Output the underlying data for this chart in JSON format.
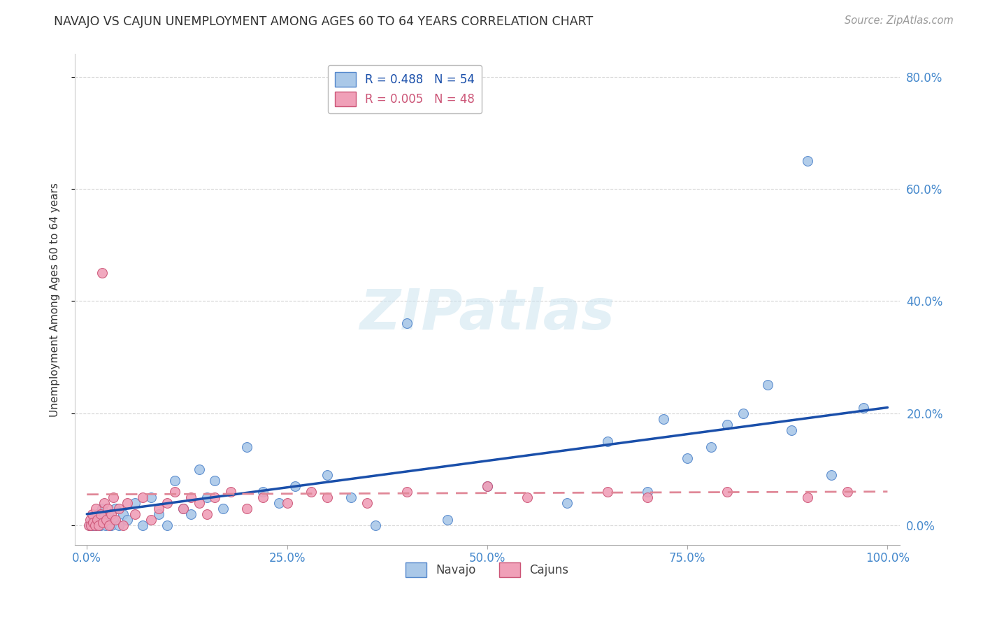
{
  "title": "NAVAJO VS CAJUN UNEMPLOYMENT AMONG AGES 60 TO 64 YEARS CORRELATION CHART",
  "source": "Source: ZipAtlas.com",
  "navajo_R": 0.488,
  "navajo_N": 54,
  "cajun_R": 0.005,
  "cajun_N": 48,
  "navajo_color": "#aac8e8",
  "cajun_color": "#f0a0b8",
  "navajo_edge": "#5588cc",
  "cajun_edge": "#cc5577",
  "trend_navajo_color": "#1a4faa",
  "trend_cajun_color": "#e08898",
  "watermark_text": "ZIPatlas",
  "background_color": "#ffffff",
  "grid_color": "#cccccc",
  "navajo_x": [
    0.3,
    0.5,
    0.7,
    0.9,
    1.1,
    1.3,
    1.5,
    1.7,
    1.9,
    2.1,
    2.3,
    2.5,
    2.7,
    3.0,
    3.3,
    3.6,
    4.0,
    4.5,
    5.0,
    6.0,
    7.0,
    8.0,
    9.0,
    10.0,
    11.0,
    12.0,
    13.0,
    14.0,
    15.0,
    16.0,
    17.0,
    20.0,
    22.0,
    24.0,
    26.0,
    30.0,
    33.0,
    36.0,
    40.0,
    45.0,
    50.0,
    60.0,
    65.0,
    70.0,
    72.0,
    75.0,
    78.0,
    80.0,
    82.0,
    85.0,
    88.0,
    90.0,
    93.0,
    97.0
  ],
  "navajo_y": [
    0.0,
    0.5,
    0.0,
    1.5,
    0.0,
    2.0,
    1.0,
    0.0,
    3.0,
    1.5,
    0.0,
    0.5,
    2.0,
    0.0,
    1.0,
    3.0,
    0.0,
    2.0,
    1.0,
    4.0,
    0.0,
    5.0,
    2.0,
    0.0,
    8.0,
    3.0,
    2.0,
    10.0,
    5.0,
    8.0,
    3.0,
    14.0,
    6.0,
    4.0,
    7.0,
    9.0,
    5.0,
    0.0,
    36.0,
    1.0,
    7.0,
    4.0,
    15.0,
    6.0,
    19.0,
    12.0,
    14.0,
    18.0,
    20.0,
    25.0,
    17.0,
    65.0,
    9.0,
    21.0
  ],
  "cajun_x": [
    0.2,
    0.4,
    0.5,
    0.7,
    0.8,
    1.0,
    1.1,
    1.3,
    1.5,
    1.7,
    1.9,
    2.0,
    2.2,
    2.4,
    2.6,
    2.8,
    3.0,
    3.3,
    3.6,
    4.0,
    4.5,
    5.0,
    6.0,
    7.0,
    8.0,
    9.0,
    10.0,
    11.0,
    12.0,
    13.0,
    14.0,
    15.0,
    16.0,
    18.0,
    20.0,
    22.0,
    25.0,
    28.0,
    30.0,
    35.0,
    40.0,
    50.0,
    55.0,
    65.0,
    70.0,
    80.0,
    90.0,
    95.0
  ],
  "cajun_y": [
    0.0,
    1.0,
    0.0,
    2.0,
    0.5,
    0.0,
    3.0,
    1.0,
    0.0,
    2.0,
    45.0,
    0.5,
    4.0,
    1.0,
    3.0,
    0.0,
    2.0,
    5.0,
    1.0,
    3.0,
    0.0,
    4.0,
    2.0,
    5.0,
    1.0,
    3.0,
    4.0,
    6.0,
    3.0,
    5.0,
    4.0,
    2.0,
    5.0,
    6.0,
    3.0,
    5.0,
    4.0,
    6.0,
    5.0,
    4.0,
    6.0,
    7.0,
    5.0,
    6.0,
    5.0,
    6.0,
    5.0,
    6.0
  ],
  "trend_navajo_x0": 0.0,
  "trend_navajo_x1": 100.0,
  "trend_navajo_y0": 2.0,
  "trend_navajo_y1": 21.0,
  "trend_cajun_x0": 0.0,
  "trend_cajun_x1": 100.0,
  "trend_cajun_y0": 5.5,
  "trend_cajun_y1": 6.0,
  "xlim": [
    -1.5,
    101.5
  ],
  "ylim": [
    -3.5,
    84
  ],
  "x_ticks": [
    0,
    25,
    50,
    75,
    100
  ],
  "x_tick_labels": [
    "0.0%",
    "25.0%",
    "50.0%",
    "75.0%",
    "100.0%"
  ],
  "y_ticks": [
    0,
    20,
    40,
    60,
    80
  ],
  "y_tick_labels": [
    "0.0%",
    "20.0%",
    "40.0%",
    "60.0%",
    "80.0%"
  ],
  "marker_size": 100,
  "title_fontsize": 12.5,
  "tick_fontsize": 12,
  "label_fontsize": 11,
  "legend_fontsize": 12
}
